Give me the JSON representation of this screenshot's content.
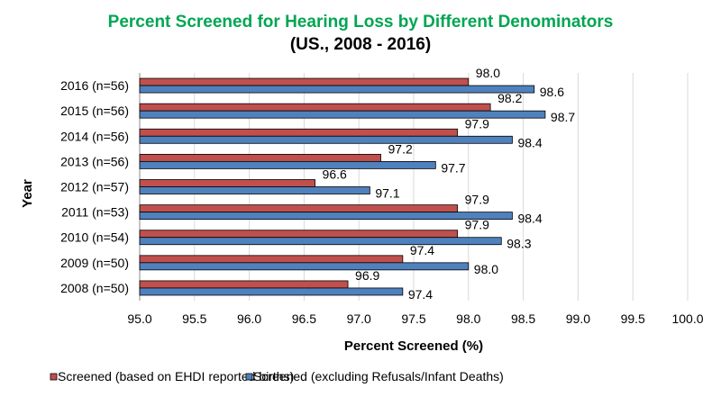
{
  "chart_data": {
    "type": "bar",
    "orientation": "horizontal",
    "title": "Percent Screened for Hearing Loss by Different Denominators",
    "subtitle": "(US., 2008 - 2016)",
    "xlabel": "Percent Screened (%)",
    "ylabel": "Year",
    "xlim": [
      95.0,
      100.0
    ],
    "xticks": [
      "95.0",
      "95.5",
      "96.0",
      "96.5",
      "97.0",
      "97.5",
      "98.0",
      "98.5",
      "99.0",
      "99.5",
      "100.0"
    ],
    "grid": "vertical",
    "legend": "bottom",
    "categories": [
      "2016 (n=56)",
      "2015 (n=56)",
      "2014 (n=56)",
      "2013 (n=56)",
      "2012 (n=57)",
      "2011 (n=53)",
      "2010 (n=54)",
      "2009 (n=50)",
      "2008 (n=50)"
    ],
    "series": [
      {
        "name": "Screened (based on EHDI reported births)",
        "color": "#c0504d",
        "values": [
          98.0,
          98.2,
          97.9,
          97.2,
          96.6,
          97.9,
          97.9,
          97.4,
          96.9
        ]
      },
      {
        "name": "Screened (excluding Refusals/Infant Deaths)",
        "color": "#4f81bd",
        "values": [
          98.6,
          98.7,
          98.4,
          97.7,
          97.1,
          98.4,
          98.3,
          98.0,
          97.4
        ]
      }
    ],
    "title_color": "#00a651"
  }
}
